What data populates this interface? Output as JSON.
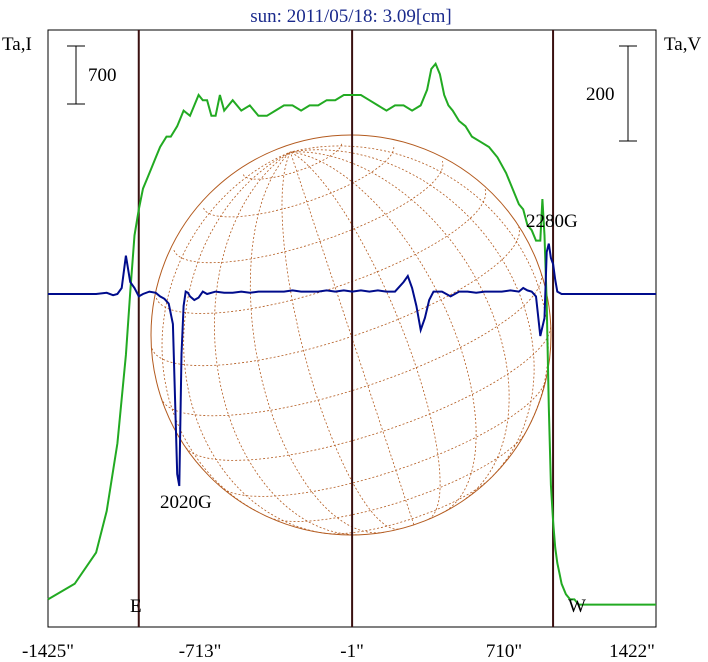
{
  "title": "sun: 2011/05/18: 3.09[cm]",
  "left_axis_label": "Ta,I",
  "right_axis_label": "Ta,V",
  "left_scale_bar": "700",
  "right_scale_bar": "200",
  "colors": {
    "intensity_curve": "#22aa22",
    "polarization_curve": "#000c8c",
    "marker_lines": "#3a1010",
    "solar_disk_grid": "#b35a1e",
    "title_text": "#1a2a8c"
  },
  "annotations": {
    "left_source": "2020G",
    "right_source": "2280G",
    "east_limb": "E",
    "west_limb": "W"
  },
  "chart_data": {
    "type": "line",
    "title": "sun: 2011/05/18: 3.09[cm]",
    "xlabel": "",
    "ylabel_left": "Ta,I",
    "ylabel_right": "Ta,V",
    "x_ticks": [
      "-1425\"",
      "-713\"",
      "-1\"",
      "710\"",
      "1422\""
    ],
    "xlim": [
      -1425,
      1422
    ],
    "vertical_markers": [
      {
        "x": -1000,
        "label": "E"
      },
      {
        "x": -1,
        "label": ""
      },
      {
        "x": 940,
        "label": "W"
      }
    ],
    "grid": false,
    "series": [
      {
        "name": "Ta,I",
        "x": [
          -1425,
          -1300,
          -1200,
          -1150,
          -1100,
          -1060,
          -1040,
          -1020,
          -1000,
          -980,
          -960,
          -940,
          -920,
          -900,
          -870,
          -850,
          -820,
          -790,
          -760,
          -740,
          -720,
          -700,
          -680,
          -660,
          -640,
          -620,
          -600,
          -560,
          -520,
          -480,
          -440,
          -400,
          -360,
          -320,
          -280,
          -240,
          -200,
          -160,
          -120,
          -80,
          -40,
          0,
          40,
          80,
          120,
          160,
          200,
          240,
          280,
          320,
          350,
          370,
          390,
          410,
          430,
          450,
          470,
          500,
          530,
          560,
          600,
          640,
          680,
          720,
          760,
          780,
          800,
          820,
          840,
          860,
          880,
          890,
          900,
          910,
          920,
          930,
          940,
          950,
          960,
          970,
          980,
          1000,
          1020,
          1040,
          1060,
          1080,
          1100,
          1150,
          1200,
          1300,
          1422
        ],
        "values": [
          0.03,
          0.06,
          0.12,
          0.2,
          0.33,
          0.5,
          0.62,
          0.73,
          0.78,
          0.82,
          0.84,
          0.86,
          0.88,
          0.9,
          0.92,
          0.92,
          0.94,
          0.97,
          0.96,
          0.98,
          1.0,
          0.99,
          0.99,
          0.96,
          0.96,
          1.0,
          0.97,
          0.99,
          0.97,
          0.98,
          0.96,
          0.96,
          0.97,
          0.98,
          0.98,
          0.97,
          0.98,
          0.98,
          0.99,
          0.99,
          1.0,
          1.0,
          1.0,
          0.99,
          0.98,
          0.97,
          0.98,
          0.98,
          0.97,
          0.98,
          1.01,
          1.05,
          1.06,
          1.04,
          1.0,
          0.98,
          0.97,
          0.95,
          0.94,
          0.92,
          0.91,
          0.9,
          0.88,
          0.85,
          0.81,
          0.79,
          0.78,
          0.75,
          0.74,
          0.72,
          0.72,
          0.8,
          0.73,
          0.6,
          0.4,
          0.25,
          0.18,
          0.13,
          0.1,
          0.08,
          0.06,
          0.04,
          0.03,
          0.03,
          0.02,
          0.02,
          0.02,
          0.02,
          0.02,
          0.02,
          0.02
        ]
      },
      {
        "name": "Ta,V",
        "x": [
          -1425,
          -1300,
          -1200,
          -1150,
          -1120,
          -1100,
          -1080,
          -1060,
          -1040,
          -1020,
          -1000,
          -980,
          -950,
          -920,
          -900,
          -880,
          -860,
          -840,
          -820,
          -810,
          -800,
          -790,
          -780,
          -770,
          -760,
          -740,
          -720,
          -700,
          -680,
          -640,
          -600,
          -560,
          -520,
          -480,
          -440,
          -400,
          -360,
          -320,
          -280,
          -240,
          -200,
          -160,
          -120,
          -80,
          -40,
          0,
          40,
          80,
          120,
          160,
          200,
          240,
          260,
          280,
          300,
          320,
          340,
          360,
          380,
          420,
          460,
          500,
          540,
          580,
          620,
          660,
          700,
          740,
          780,
          800,
          820,
          840,
          860,
          880,
          900,
          910,
          920,
          930,
          940,
          950,
          960,
          980,
          1000,
          1050,
          1100,
          1200,
          1300,
          1422
        ],
        "values": [
          0,
          0,
          0,
          0.01,
          -0.01,
          0,
          0.05,
          0.32,
          0.1,
          0.05,
          -0.02,
          0,
          0.02,
          0.01,
          -0.02,
          -0.04,
          -0.08,
          -0.25,
          -1.5,
          -1.6,
          -0.5,
          -0.1,
          0.02,
          0.01,
          -0.02,
          -0.05,
          -0.03,
          0.02,
          0,
          0.02,
          0.01,
          0.01,
          0.02,
          0.01,
          0.02,
          0.02,
          0.02,
          0.02,
          0.03,
          0.02,
          0.02,
          0.02,
          0.03,
          0.02,
          0.03,
          0.02,
          0.03,
          0.02,
          0.03,
          0.02,
          0.02,
          0.1,
          0.15,
          0.05,
          -0.1,
          -0.3,
          -0.2,
          -0.05,
          0.02,
          0.02,
          -0.02,
          0.02,
          0.02,
          0.01,
          0.02,
          0.02,
          0.02,
          0.03,
          0.02,
          0.05,
          0.03,
          0.02,
          -0.02,
          -0.35,
          -0.2,
          0.35,
          0.42,
          0.3,
          0.25,
          0.12,
          0.02,
          0,
          0,
          0,
          0,
          0,
          0,
          0
        ]
      }
    ]
  }
}
